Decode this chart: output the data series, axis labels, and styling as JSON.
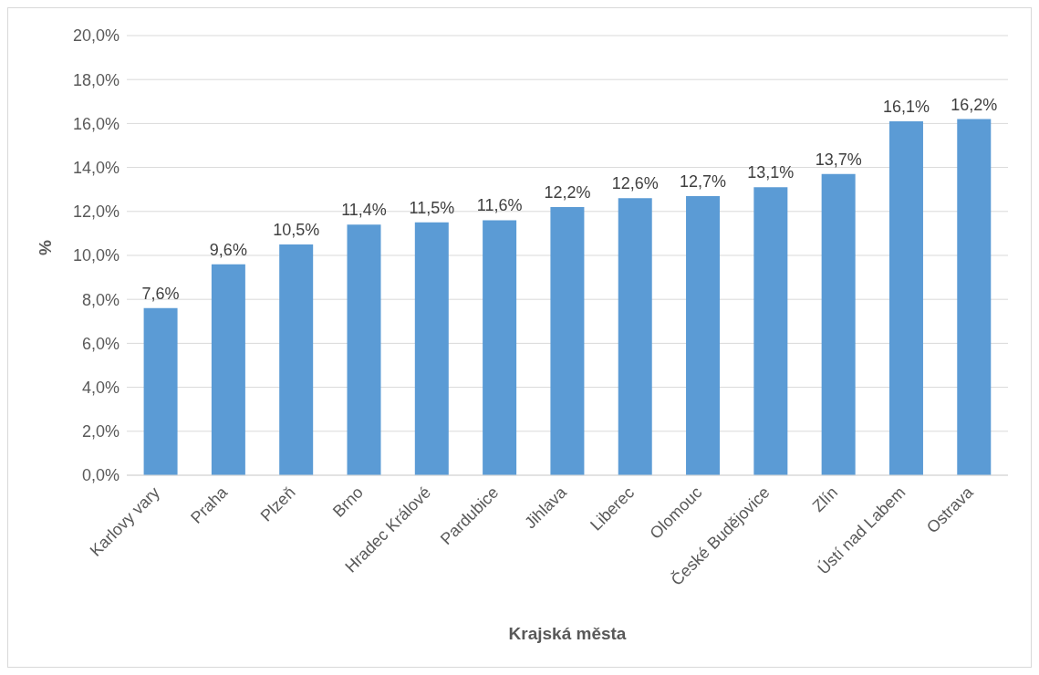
{
  "chart_data": {
    "type": "bar",
    "xlabel": "Krajská města",
    "ylabel": "%",
    "categories": [
      "Karlovy vary",
      "Praha",
      "Plzeň",
      "Brno",
      "Hradec Králové",
      "Pardubice",
      "Jihlava",
      "Liberec",
      "Olomouc",
      "České Budějovice",
      "Zlín",
      "Ústí nad Labem",
      "Ostrava"
    ],
    "values": [
      7.6,
      9.6,
      10.5,
      11.4,
      11.5,
      11.6,
      12.2,
      12.6,
      12.7,
      13.1,
      13.7,
      16.1,
      16.2
    ],
    "value_labels": [
      "7,6%",
      "9,6%",
      "10,5%",
      "11,4%",
      "11,5%",
      "11,6%",
      "12,2%",
      "12,6%",
      "12,7%",
      "13,1%",
      "13,7%",
      "16,1%",
      "16,2%"
    ],
    "color": "#5b9bd5",
    "ylim": [
      0,
      20
    ],
    "yticks": [
      {
        "value": 0,
        "label": "0,0%"
      },
      {
        "value": 2,
        "label": "2,0%"
      },
      {
        "value": 4,
        "label": "4,0%"
      },
      {
        "value": 6,
        "label": "6,0%"
      },
      {
        "value": 8,
        "label": "8,0%"
      },
      {
        "value": 10,
        "label": "10,0%"
      },
      {
        "value": 12,
        "label": "12,0%"
      },
      {
        "value": 14,
        "label": "14,0%"
      },
      {
        "value": 16,
        "label": "16,0%"
      },
      {
        "value": 18,
        "label": "18,0%"
      },
      {
        "value": 20,
        "label": "20,0%"
      }
    ],
    "grid": "y"
  }
}
